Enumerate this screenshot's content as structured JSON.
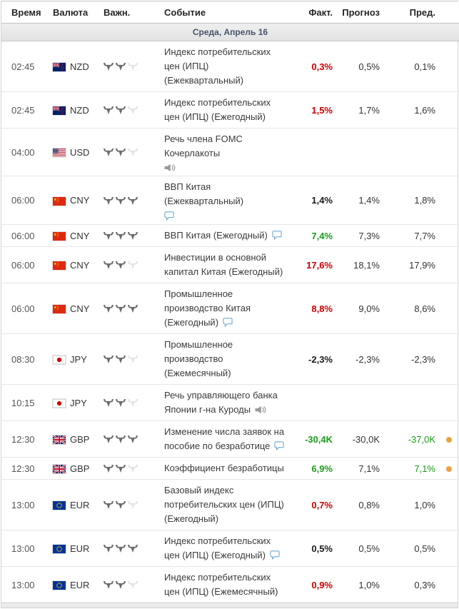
{
  "columns": {
    "time": "Время",
    "currency": "Валюта",
    "importance": "Важн.",
    "event": "Событие",
    "actual": "Факт.",
    "forecast": "Прогноз",
    "previous": "Пред."
  },
  "date_separator": "Среда, Апрель 16",
  "colors": {
    "positive": "#1a9c1a",
    "negative": "#cc0000",
    "neutral": "#1b1b1b",
    "alert_dot": "#e8a33d",
    "bull_active": "#6b6b6b",
    "bull_inactive": "#e3e3e3"
  },
  "rows": [
    {
      "time": "02:45",
      "currency": "NZD",
      "flag": "nzd",
      "importance": 2,
      "event": "Индекс потребительских цен (ИПЦ) (Ежеквартальный)",
      "icon": null,
      "icon_layout": null,
      "actual": "0,3%",
      "actual_sentiment": "negative",
      "forecast": "0,5%",
      "previous": "0,1%",
      "previous_sentiment": "neutral",
      "dot": false
    },
    {
      "time": "02:45",
      "currency": "NZD",
      "flag": "nzd",
      "importance": 2,
      "event": "Индекс потребительских цен (ИПЦ) (Ежегодный)",
      "icon": null,
      "icon_layout": null,
      "actual": "1,5%",
      "actual_sentiment": "negative",
      "forecast": "1,7%",
      "previous": "1,6%",
      "previous_sentiment": "neutral",
      "dot": false
    },
    {
      "time": "04:00",
      "currency": "USD",
      "flag": "usd",
      "importance": 2,
      "event": "Речь члена FOMC Кочерлакоты",
      "icon": "speech",
      "icon_layout": "block",
      "actual": "",
      "actual_sentiment": "neutral",
      "forecast": "",
      "previous": "",
      "previous_sentiment": "neutral",
      "dot": false
    },
    {
      "time": "06:00",
      "currency": "CNY",
      "flag": "cny",
      "importance": 3,
      "event": "ВВП Китая (Ежеквартальный)",
      "icon": "chat",
      "icon_layout": "block",
      "actual": "1,4%",
      "actual_sentiment": "neutral",
      "forecast": "1,4%",
      "previous": "1,8%",
      "previous_sentiment": "neutral",
      "dot": false
    },
    {
      "time": "06:00",
      "currency": "CNY",
      "flag": "cny",
      "importance": 3,
      "event": "ВВП Китая (Ежегодный)",
      "icon": "chat",
      "icon_layout": "inline",
      "actual": "7,4%",
      "actual_sentiment": "positive",
      "forecast": "7,3%",
      "previous": "7,7%",
      "previous_sentiment": "neutral",
      "dot": false
    },
    {
      "time": "06:00",
      "currency": "CNY",
      "flag": "cny",
      "importance": 2,
      "event": "Инвестиции в основной капитал Китая (Ежегодный)",
      "icon": null,
      "icon_layout": null,
      "actual": "17,6%",
      "actual_sentiment": "negative",
      "forecast": "18,1%",
      "previous": "17,9%",
      "previous_sentiment": "neutral",
      "dot": false
    },
    {
      "time": "06:00",
      "currency": "CNY",
      "flag": "cny",
      "importance": 3,
      "event": "Промышленное производство Китая (Ежегодный)",
      "icon": "chat",
      "icon_layout": "inline",
      "actual": "8,8%",
      "actual_sentiment": "negative",
      "forecast": "9,0%",
      "previous": "8,6%",
      "previous_sentiment": "neutral",
      "dot": false
    },
    {
      "time": "08:30",
      "currency": "JPY",
      "flag": "jpy",
      "importance": 2,
      "event": "Промышленное производство (Ежемесячный)",
      "icon": null,
      "icon_layout": null,
      "actual": "-2,3%",
      "actual_sentiment": "neutral",
      "forecast": "-2,3%",
      "previous": "-2,3%",
      "previous_sentiment": "neutral",
      "dot": false
    },
    {
      "time": "10:15",
      "currency": "JPY",
      "flag": "jpy",
      "importance": 2,
      "event": "Речь управляющего банка Японии г-на Куроды",
      "icon": "speech",
      "icon_layout": "inline",
      "actual": "",
      "actual_sentiment": "neutral",
      "forecast": "",
      "previous": "",
      "previous_sentiment": "neutral",
      "dot": false
    },
    {
      "time": "12:30",
      "currency": "GBP",
      "flag": "gbp",
      "importance": 3,
      "event": "Изменение числа заявок на пособие по безработице",
      "icon": "chat",
      "icon_layout": "inline",
      "actual": "-30,4K",
      "actual_sentiment": "positive",
      "forecast": "-30,0K",
      "previous": "-37,0K",
      "previous_sentiment": "positive",
      "dot": true
    },
    {
      "time": "12:30",
      "currency": "GBP",
      "flag": "gbp",
      "importance": 2,
      "event": "Коэффициент безработицы",
      "icon": null,
      "icon_layout": null,
      "actual": "6,9%",
      "actual_sentiment": "positive",
      "forecast": "7,1%",
      "previous": "7,1%",
      "previous_sentiment": "positive",
      "dot": true
    },
    {
      "time": "13:00",
      "currency": "EUR",
      "flag": "eur",
      "importance": 2,
      "event": "Базовый индекс потребительских цен (ИПЦ) (Ежегодный)",
      "icon": null,
      "icon_layout": null,
      "actual": "0,7%",
      "actual_sentiment": "negative",
      "forecast": "0,8%",
      "previous": "1,0%",
      "previous_sentiment": "neutral",
      "dot": false
    },
    {
      "time": "13:00",
      "currency": "EUR",
      "flag": "eur",
      "importance": 3,
      "event": "Индекс потребительских цен (ИПЦ) (Ежегодный)",
      "icon": "chat",
      "icon_layout": "inline",
      "actual": "0,5%",
      "actual_sentiment": "neutral",
      "forecast": "0,5%",
      "previous": "0,5%",
      "previous_sentiment": "neutral",
      "dot": false
    },
    {
      "time": "13:00",
      "currency": "EUR",
      "flag": "eur",
      "importance": 2,
      "event": "Индекс потребительских цен (ИПЦ) (Ежемесячный)",
      "icon": null,
      "icon_layout": null,
      "actual": "0,9%",
      "actual_sentiment": "negative",
      "forecast": "1,0%",
      "previous": "0,3%",
      "previous_sentiment": "neutral",
      "dot": false
    }
  ]
}
